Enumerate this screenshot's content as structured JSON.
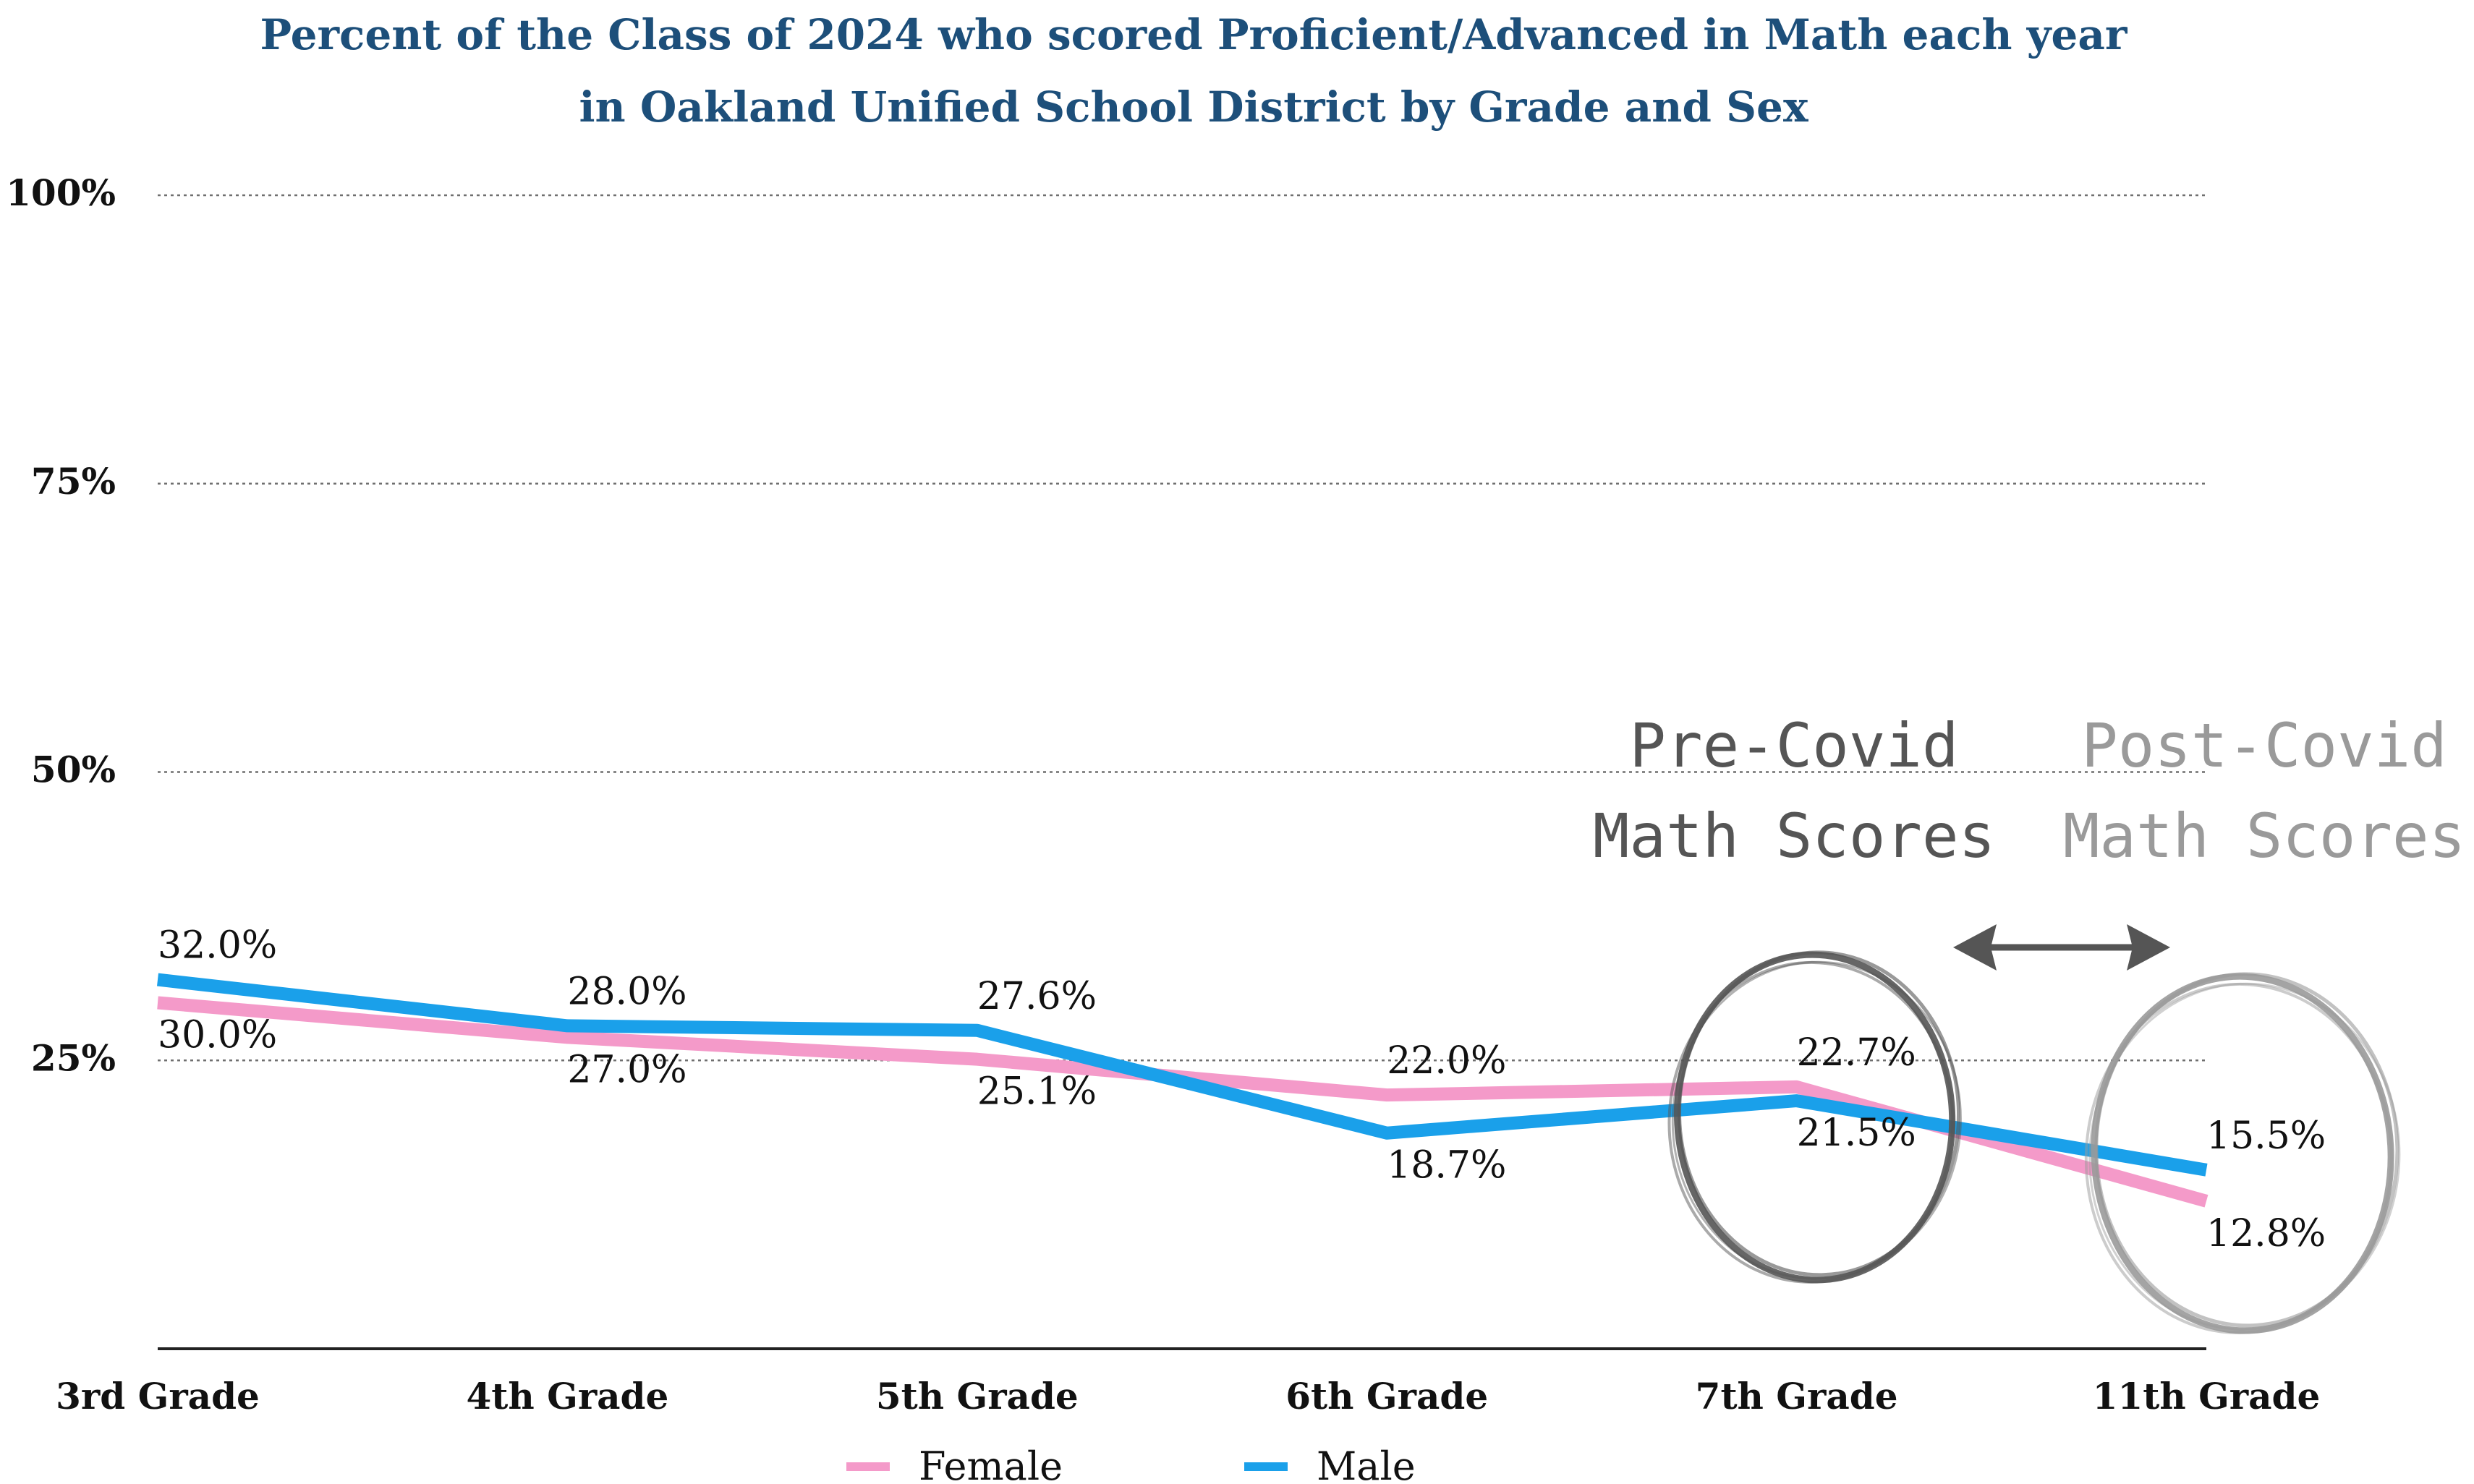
{
  "chart_data": {
    "type": "line",
    "title": "Percent of the Class of 2024 who scored Proficient/Advanced in Math each year",
    "subtitle": "in Oakland Unified School District by Grade and Sex",
    "categories": [
      "3rd Grade",
      "4th Grade",
      "5th Grade",
      "6th Grade",
      "7th Grade",
      "11th Grade"
    ],
    "series": [
      {
        "name": "Female",
        "color": "#f49ac9",
        "values": [
          30.0,
          27.0,
          25.1,
          22.0,
          22.7,
          12.8
        ],
        "labels": [
          "30.0%",
          "27.0%",
          "25.1%",
          "22.0%",
          "22.7%",
          "12.8%"
        ]
      },
      {
        "name": "Male",
        "color": "#1aa0ea",
        "values": [
          32.0,
          28.0,
          27.6,
          18.7,
          21.5,
          15.5
        ],
        "labels": [
          "32.0%",
          "28.0%",
          "27.6%",
          "18.7%",
          "21.5%",
          "15.5%"
        ]
      }
    ],
    "yticks": [
      25,
      50,
      75,
      100
    ],
    "ytick_labels": [
      "25%",
      "50%",
      "75%",
      "100%"
    ],
    "ylim": [
      0,
      100
    ],
    "grid": true,
    "legend_position": "bottom-center",
    "annotations": [
      {
        "text_line1": "Pre-Covid",
        "text_line2": "Math Scores",
        "color": "#555555",
        "target": "7th Grade"
      },
      {
        "text_line1": "Post-Covid",
        "text_line2": "Math Scores",
        "color": "#9a9a9a",
        "target": "11th Grade"
      }
    ]
  }
}
